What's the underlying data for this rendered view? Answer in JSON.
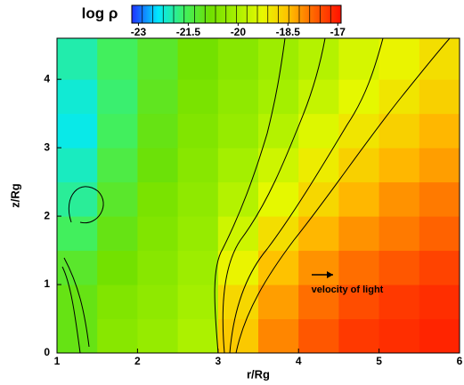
{
  "chart_data": {
    "type": "heatmap",
    "colorbar_title": "log ρ",
    "clim": [
      -23.2,
      -16.9
    ],
    "cticks": [
      -23,
      -21.5,
      -20,
      -18.5,
      -17
    ],
    "colors": [
      "#2030ff",
      "#00e8ff",
      "#40f060",
      "#70e000",
      "#a8f000",
      "#e8f800",
      "#ffc000",
      "#ff6000",
      "#ff1000"
    ],
    "x_label": "r/Rg",
    "y_label": "z/Rg",
    "xlim": [
      1,
      6
    ],
    "ylim": [
      0,
      4.6
    ],
    "xticks": [
      1,
      2,
      3,
      4,
      5,
      6
    ],
    "yticks": [
      0,
      1,
      2,
      3,
      4
    ],
    "annotation": "velocity of light",
    "x": [
      1.25,
      1.75,
      2.25,
      2.75,
      3.25,
      3.75,
      4.25,
      4.75,
      5.25,
      5.75
    ],
    "y": [
      0.25,
      0.75,
      1.25,
      1.75,
      2.25,
      2.75,
      3.25,
      3.75,
      4.25
    ],
    "z": [
      [
        -21,
        -20.5,
        -20.3,
        -20,
        -18.6,
        -18,
        -17.6,
        -17.3,
        -17.2,
        -17.1
      ],
      [
        -21,
        -20.6,
        -20.4,
        -20.1,
        -18.8,
        -18.2,
        -17.8,
        -17.5,
        -17.3,
        -17.2
      ],
      [
        -21.2,
        -20.8,
        -20.5,
        -20.2,
        -19.2,
        -18.5,
        -18.1,
        -17.8,
        -17.6,
        -17.4
      ],
      [
        -21.6,
        -21,
        -20.6,
        -20.3,
        -19.6,
        -18.9,
        -18.4,
        -18.1,
        -17.9,
        -17.7
      ],
      [
        -21.9,
        -21.2,
        -20.7,
        -20.4,
        -19.9,
        -19.3,
        -18.8,
        -18.4,
        -18.1,
        -17.9
      ],
      [
        -22.1,
        -21.4,
        -20.9,
        -20.5,
        -20.1,
        -19.6,
        -19.1,
        -18.7,
        -18.4,
        -18.2
      ],
      [
        -22.3,
        -21.6,
        -21,
        -20.6,
        -20.3,
        -19.9,
        -19.4,
        -19,
        -18.7,
        -18.4
      ],
      [
        -22.2,
        -21.7,
        -21.1,
        -20.7,
        -20.4,
        -20.1,
        -19.7,
        -19.3,
        -19,
        -18.7
      ],
      [
        -22,
        -21.6,
        -21.2,
        -20.8,
        -20.5,
        -20.2,
        -19.9,
        -19.5,
        -19.2,
        -18.9
      ]
    ]
  }
}
